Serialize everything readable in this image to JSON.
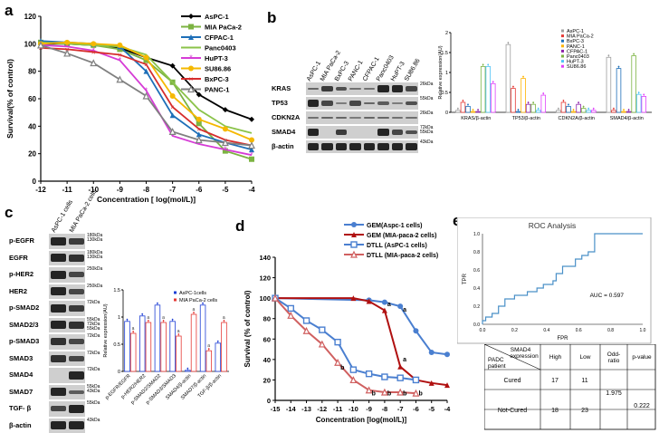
{
  "panels": {
    "a": {
      "label": "a"
    },
    "b": {
      "label": "b"
    },
    "c": {
      "label": "c"
    },
    "d": {
      "label": "d"
    },
    "e": {
      "label": "e"
    }
  },
  "chart_data": [
    {
      "id": "a",
      "type": "line",
      "xlabel": "Concentration [ log(mol/L)]",
      "ylabel": "Survival(% of control)",
      "x": [
        -12,
        -11,
        -10,
        -9,
        -8,
        -7,
        -6,
        -5,
        -4
      ],
      "xlim": [
        -12,
        -4
      ],
      "ylim": [
        0,
        120
      ],
      "yticks": [
        0,
        20,
        40,
        60,
        80,
        100,
        120
      ],
      "legend_position": "top-right",
      "series": [
        {
          "name": "AsPC-1",
          "color": "#000000",
          "marker": "diamond",
          "values": [
            100,
            100,
            99,
            97,
            90,
            84,
            63,
            52,
            45
          ]
        },
        {
          "name": "MIA PaCa-2",
          "color": "#7cb342",
          "marker": "square",
          "values": [
            101,
            100,
            99,
            96,
            88,
            72,
            42,
            22,
            16
          ]
        },
        {
          "name": "CFPAC-1",
          "color": "#1e6fb8",
          "marker": "triangle",
          "values": [
            102,
            101,
            100,
            98,
            80,
            48,
            34,
            28,
            23
          ]
        },
        {
          "name": "Panc0403",
          "color": "#8bc34a",
          "marker": "none",
          "values": [
            101,
            100,
            99,
            98,
            92,
            72,
            52,
            40,
            35
          ]
        },
        {
          "name": "HuPT-3",
          "color": "#d63cd6",
          "marker": "star",
          "values": [
            99,
            98,
            95,
            88,
            66,
            33,
            27,
            23,
            19
          ]
        },
        {
          "name": "SU86.86",
          "color": "#f5b800",
          "marker": "circle",
          "values": [
            100,
            101,
            100,
            99,
            90,
            62,
            45,
            38,
            30
          ]
        },
        {
          "name": "BxPC-3",
          "color": "#d62d2d",
          "marker": "x",
          "values": [
            97,
            96,
            94,
            92,
            85,
            54,
            38,
            30,
            26
          ]
        },
        {
          "name": "PANC-1",
          "color": "#808080",
          "marker": "triangle-open",
          "values": [
            99,
            93,
            86,
            74,
            62,
            36,
            30,
            28,
            26
          ]
        }
      ]
    },
    {
      "id": "b",
      "type": "bar",
      "ylabel": "Relative expression(AU)",
      "categories": [
        "KRAS/β-actin",
        "TP53/β-actin",
        "CDKN2A/β-actin",
        "SMAD4/β-actin"
      ],
      "ylim": [
        0,
        2
      ],
      "yticks": [
        "0",
        "0.5",
        "1",
        "1.5",
        "2"
      ],
      "legend_position": "top-right",
      "series": [
        {
          "name": "AsPC-1",
          "color": "#9e9e9e",
          "values": [
            0.05,
            1.7,
            0.05,
            1.38
          ]
        },
        {
          "name": "MIA PaCa-2",
          "color": "#e53935",
          "values": [
            0.25,
            0.6,
            0.25,
            0.05
          ]
        },
        {
          "name": "BxPC-3",
          "color": "#1e6fb8",
          "values": [
            0.15,
            0.02,
            0.15,
            1.1
          ]
        },
        {
          "name": "PANC-1",
          "color": "#ffb300",
          "values": [
            0.02,
            0.85,
            0.02,
            0.02
          ]
        },
        {
          "name": "CFPAC-1",
          "color": "#8e24aa",
          "values": [
            0.02,
            0.2,
            0.2,
            0.02
          ]
        },
        {
          "name": "Panc0403",
          "color": "#7cb342",
          "values": [
            1.15,
            0.2,
            0.1,
            1.42
          ]
        },
        {
          "name": "HuPT-3",
          "color": "#4fc3f7",
          "values": [
            1.15,
            0.05,
            0.05,
            0.45
          ]
        },
        {
          "name": "SU86.86",
          "color": "#e040fb",
          "values": [
            0.72,
            0.43,
            0.05,
            0.4
          ]
        }
      ],
      "blot": {
        "lanes": [
          "AsPC-1",
          "MIA PaCa-2",
          "BxPC-3",
          "PANC-1",
          "CFPAC-1",
          "Panc0403",
          "HuPT-3",
          "SU86.86"
        ],
        "rows": [
          {
            "name": "KRAS",
            "kda": "26kDa"
          },
          {
            "name": "TP53",
            "kda": "55kDa"
          },
          {
            "name": "CDKN2A",
            "kda": "26kDa"
          },
          {
            "name": "SMAD4",
            "kda": "72kDa\n55kDa"
          },
          {
            "name": "β-actin",
            "kda": "43kDa"
          }
        ]
      }
    },
    {
      "id": "c",
      "type": "bar",
      "ylabel": "Relative expression(AU)",
      "categories": [
        "p-EGFR/EGFR",
        "p-HER2/HER2",
        "p-SMAD2/SMAD2",
        "p-SMAD3/SMAD3",
        "SMAD4/β-actin",
        "SMAD7/β-actin",
        "TGF-β/β-actin"
      ],
      "ylim": [
        0,
        1.5
      ],
      "yticks": [
        "0",
        "0.5",
        "1",
        "1.5"
      ],
      "legend_position": "top-right",
      "series": [
        {
          "name": "AsPC-1cells",
          "color": "#1e3fd6",
          "values": [
            0.92,
            1.02,
            1.22,
            0.92,
            0.02,
            1.22,
            0.52
          ]
        },
        {
          "name": "MIA PaCa-2 cells",
          "color": "#e53935",
          "values": [
            0.7,
            0.9,
            0.9,
            0.65,
            1.05,
            0.38,
            0.9
          ]
        }
      ],
      "annotations": [
        "a",
        "a",
        "a",
        "a",
        "a",
        "a",
        "a",
        "a"
      ],
      "blot": {
        "lanes": [
          "AsPC-1 cells",
          "MIA PaCa-2 cells"
        ],
        "rows": [
          {
            "name": "p-EGFR",
            "kda": "180kDa\n130kDa"
          },
          {
            "name": "EGFR",
            "kda": "180kDa\n130kDa"
          },
          {
            "name": "p-HER2",
            "kda": "250kDa"
          },
          {
            "name": "HER2",
            "kda": "250kDa"
          },
          {
            "name": "p-SMAD2",
            "kda": "72kDa"
          },
          {
            "name": "SMAD2/3",
            "kda": "55kDa\n72kDa\n55kDa"
          },
          {
            "name": "p-SMAD3",
            "kda": "72kDa"
          },
          {
            "name": "SMAD3",
            "kda": "72kDa"
          },
          {
            "name": "SMAD4",
            "kda": "72kDa"
          },
          {
            "name": "SMAD7",
            "kda": "55kDa\n43kDa"
          },
          {
            "name": "TGF- β",
            "kda": "55kDa"
          },
          {
            "name": "β-actin",
            "kda": "43kDa"
          }
        ]
      }
    },
    {
      "id": "d",
      "type": "line",
      "xlabel": "Concentration [log(mol/L)]",
      "ylabel": "Survival (% of control)",
      "x": [
        -15,
        -14,
        -13,
        -12,
        -11,
        -10,
        -9,
        -8,
        -7,
        -6,
        -5,
        -4
      ],
      "xlim": [
        -15,
        -4
      ],
      "ylim": [
        0,
        140
      ],
      "yticks": [
        0,
        20,
        40,
        60,
        80,
        100,
        120,
        140
      ],
      "legend_position": "top-right",
      "annotations": [
        "a",
        "a",
        "a",
        "b",
        "b",
        "b",
        "b",
        "b"
      ],
      "series": [
        {
          "name": "GEM(Aspc-1 cells)",
          "color": "#4a7fd0",
          "marker": "circle",
          "x": [
            -15,
            -9,
            -8,
            -7,
            -6,
            -5,
            -4
          ],
          "values": [
            100,
            98,
            96,
            92,
            68,
            47,
            45
          ]
        },
        {
          "name": "GEM (MIA-paca-2 cells)",
          "color": "#b01010",
          "marker": "triangle",
          "x": [
            -15,
            -10,
            -9,
            -8,
            -7,
            -6,
            -5,
            -4
          ],
          "values": [
            100,
            100,
            97,
            88,
            33,
            20,
            17,
            15
          ]
        },
        {
          "name": "DTLL (AsPC-1 cells)",
          "color": "#4a7fd0",
          "marker": "square-open",
          "x": [
            -15,
            -14,
            -13,
            -12,
            -11,
            -10,
            -9,
            -8,
            -7,
            -6
          ],
          "values": [
            100,
            90,
            78,
            69,
            57,
            30,
            26,
            23,
            22,
            20
          ]
        },
        {
          "name": "DTLL (MIA-paca-2 cells)",
          "color": "#d06060",
          "marker": "triangle-open",
          "x": [
            -15,
            -14,
            -13,
            -12,
            -11,
            -10,
            -9,
            -8,
            -7,
            -6
          ],
          "values": [
            100,
            83,
            68,
            55,
            37,
            20,
            10,
            8,
            8,
            7
          ]
        }
      ]
    },
    {
      "id": "e",
      "type": "line",
      "title": "ROC Analysis",
      "xlabel": "FPR",
      "ylabel": "TPR",
      "xlim": [
        0,
        1
      ],
      "ylim": [
        0,
        1
      ],
      "xticks": [
        "0.0",
        "0.2",
        "0.4",
        "0.6",
        "0.8",
        "1.0"
      ],
      "yticks": [
        "0.0",
        "0.2",
        "0.4",
        "0.6",
        "0.8",
        "1.0"
      ],
      "auc_label": "AUC = 0.597",
      "series": [
        {
          "name": "",
          "color": "#4a90c8",
          "x": [
            0,
            0,
            0.02,
            0.02,
            0.06,
            0.06,
            0.1,
            0.1,
            0.14,
            0.14,
            0.2,
            0.2,
            0.28,
            0.28,
            0.34,
            0.34,
            0.38,
            0.38,
            0.44,
            0.44,
            0.46,
            0.46,
            0.5,
            0.5,
            0.58,
            0.58,
            0.62,
            0.62,
            0.66,
            0.66,
            0.7,
            0.7,
            1.0
          ],
          "values": [
            0,
            0.04,
            0.04,
            0.08,
            0.08,
            0.12,
            0.12,
            0.2,
            0.2,
            0.28,
            0.28,
            0.32,
            0.32,
            0.36,
            0.36,
            0.4,
            0.4,
            0.44,
            0.44,
            0.48,
            0.48,
            0.56,
            0.56,
            0.64,
            0.64,
            0.72,
            0.72,
            0.76,
            0.76,
            0.8,
            0.8,
            1.0,
            1.0
          ]
        }
      ]
    }
  ],
  "table_e": {
    "corner_top": "SMAD4",
    "corner_sub": "expression",
    "row_header_line1": "PADC",
    "row_header_line2": "patient",
    "headers": [
      "High",
      "Low",
      "Odd-\nratio",
      "p-value"
    ],
    "rows": [
      {
        "label": "Cured",
        "high": "17",
        "low": "11"
      },
      {
        "label": "Not-Cured",
        "high": "18",
        "low": "23"
      }
    ],
    "odds_ratio": "1.975",
    "p_value": "0.222"
  }
}
